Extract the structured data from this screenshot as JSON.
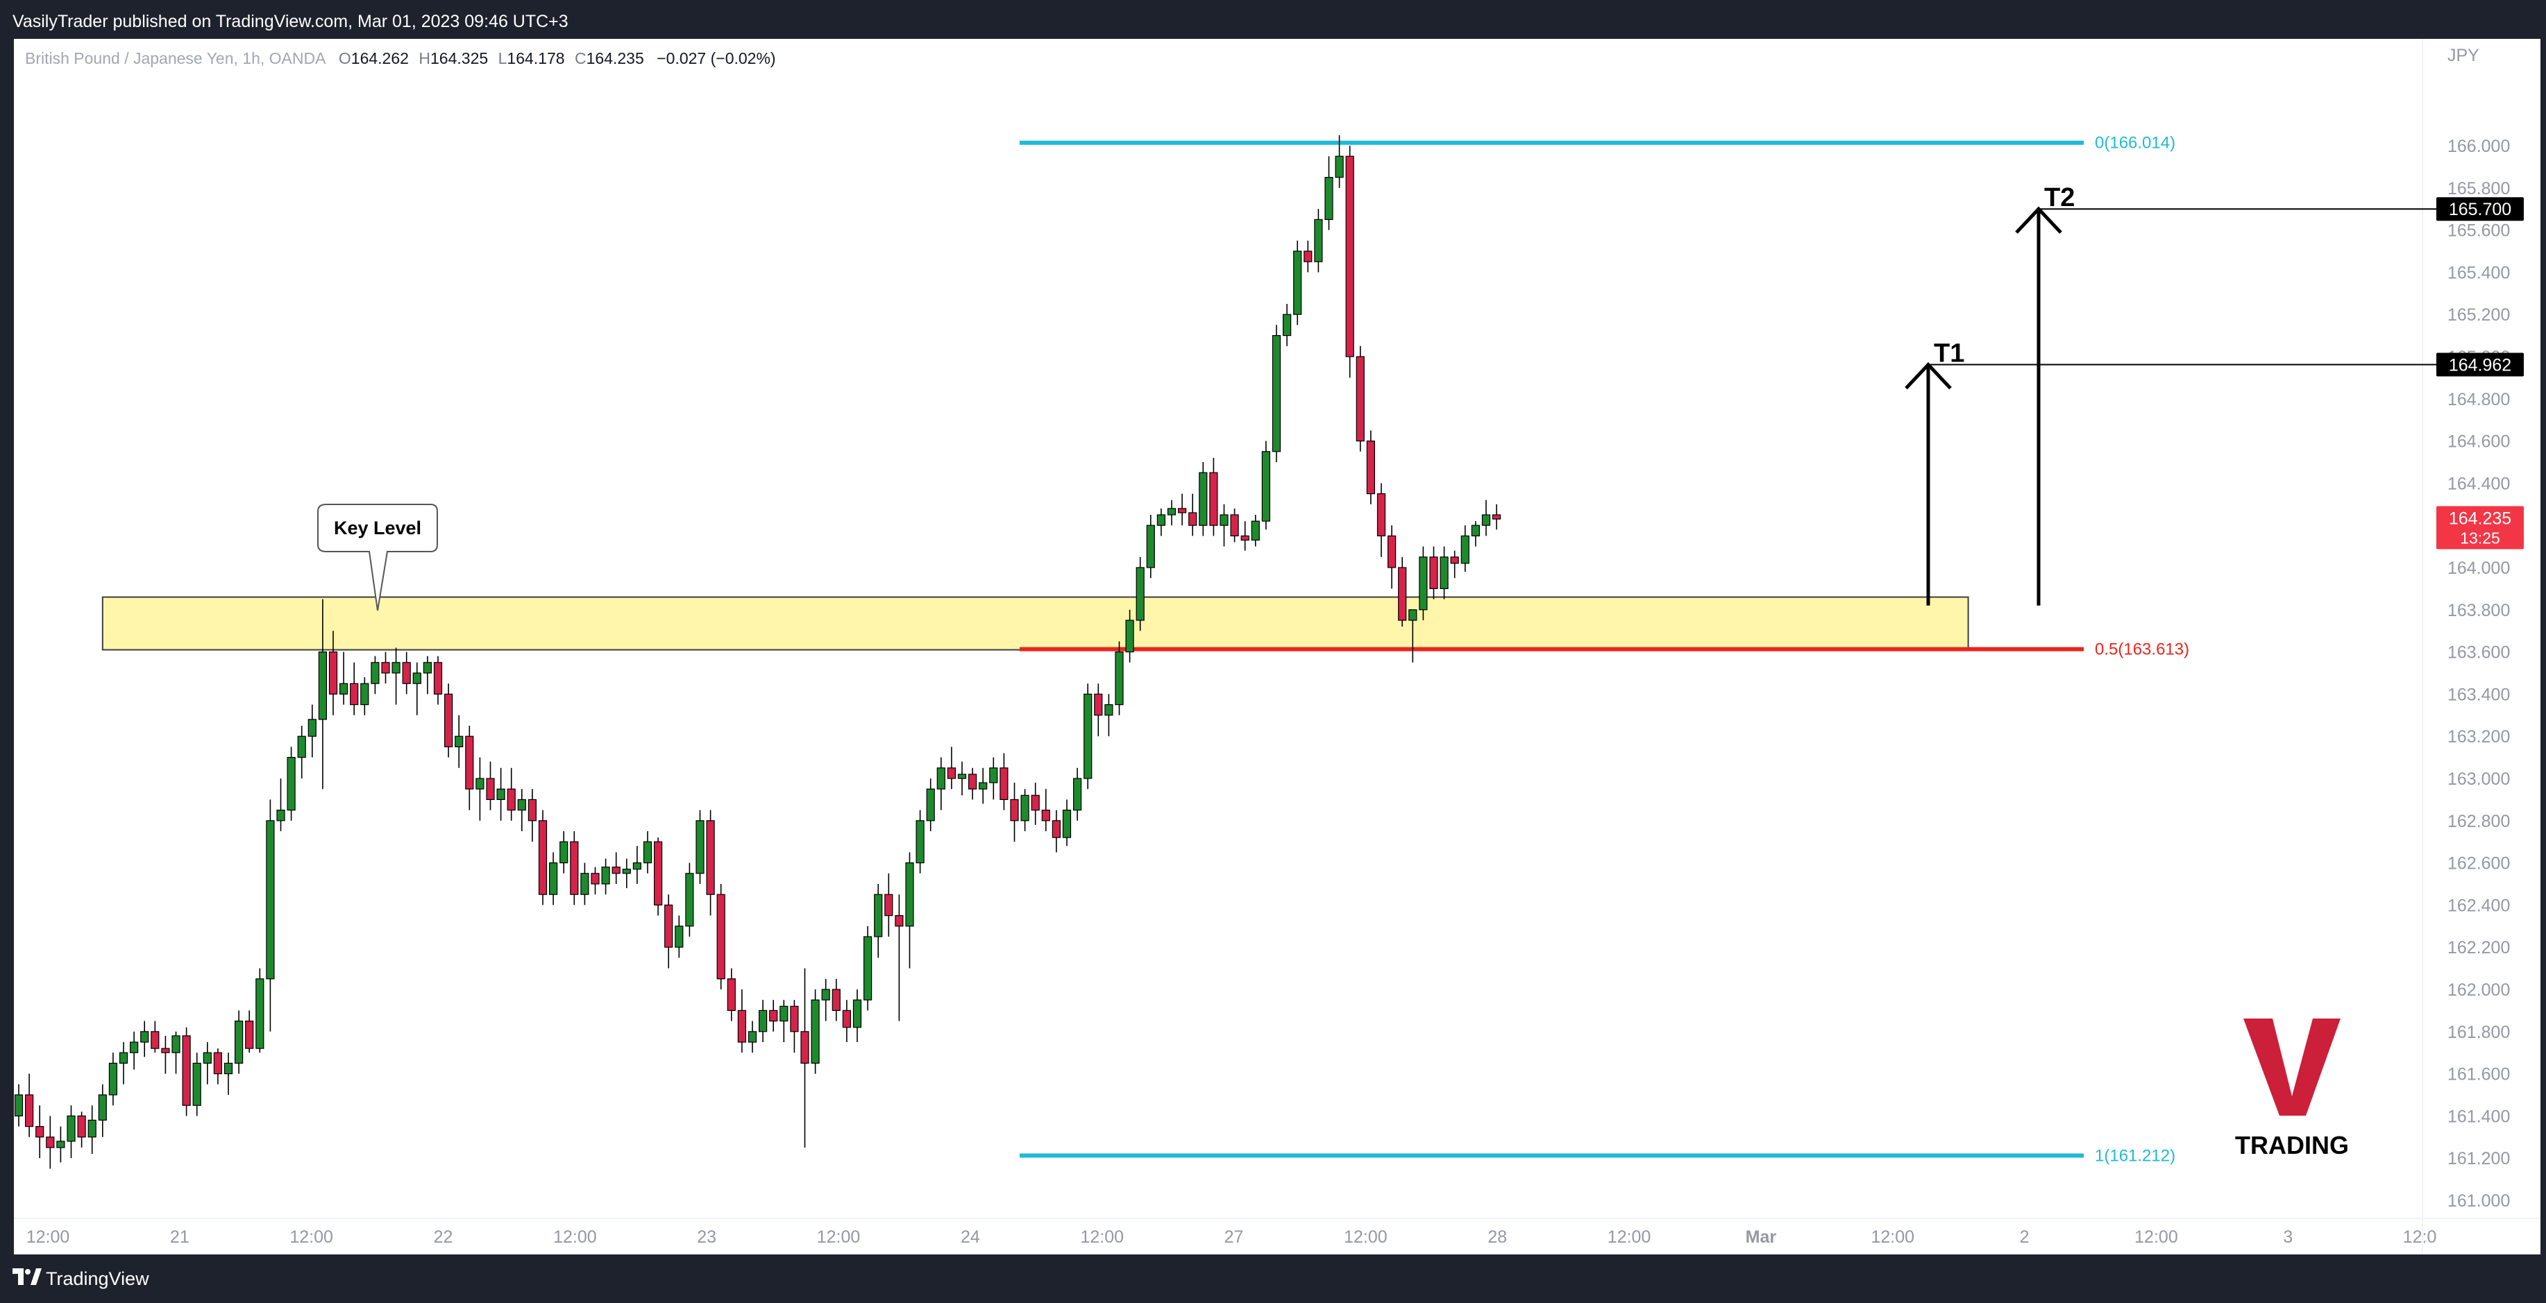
{
  "header": {
    "published": "VasilyTrader published on TradingView.com, Mar 01, 2023 09:46 UTC+3"
  },
  "footer": {
    "brand": "TradingView"
  },
  "legend": {
    "symbol": "British Pound / Japanese Yen, 1h, OANDA",
    "open_label": "O",
    "open": "164.262",
    "high_label": "H",
    "high": "164.325",
    "low_label": "L",
    "low": "164.178",
    "close_label": "C",
    "close": "164.235",
    "change": "−0.027 (−0.02%)"
  },
  "currency": "JPY",
  "watermark": {
    "letter": "V",
    "text": "TRADING",
    "color": "#cc1f3a"
  },
  "annotations": {
    "key_level": "Key Level",
    "t1": "T1",
    "t2": "T2"
  },
  "colors": {
    "up": "#1e8a2e",
    "down": "#d6234a",
    "fib_extreme": "#1ebad6",
    "fib_mid": "#e8261e",
    "zone_fill": "#fff59d",
    "zone_border": "#3d3d3d"
  },
  "chart_data": {
    "type": "candlestick",
    "ylim": [
      160.9,
      166.3
    ],
    "y_ticks": [
      161.0,
      161.2,
      161.4,
      161.6,
      161.8,
      162.0,
      162.2,
      162.4,
      162.6,
      162.8,
      163.0,
      163.2,
      163.4,
      163.6,
      163.8,
      164.0,
      164.2,
      164.4,
      164.6,
      164.8,
      165.0,
      165.2,
      165.4,
      165.6,
      165.8,
      166.0
    ],
    "y_tick_labels": [
      "161.000",
      "161.200",
      "161.400",
      "161.600",
      "161.800",
      "162.000",
      "162.200",
      "162.400",
      "162.600",
      "162.800",
      "163.000",
      "163.200",
      "163.400",
      "163.600",
      "163.800",
      "164.000",
      "164.200",
      "164.400",
      "164.600",
      "164.800",
      "165.000",
      "165.200",
      "165.400",
      "165.600",
      "165.800",
      "166.000"
    ],
    "x_ticks": [
      {
        "label": "12:00",
        "bar": 2
      },
      {
        "label": "21",
        "bar": 14
      },
      {
        "label": "12:00",
        "bar": 26
      },
      {
        "label": "22",
        "bar": 38
      },
      {
        "label": "12:00",
        "bar": 50
      },
      {
        "label": "23",
        "bar": 62
      },
      {
        "label": "12:00",
        "bar": 74
      },
      {
        "label": "24",
        "bar": 86
      },
      {
        "label": "12:00",
        "bar": 98
      },
      {
        "label": "27",
        "bar": 110
      },
      {
        "label": "12:00",
        "bar": 122
      },
      {
        "label": "28",
        "bar": 134
      },
      {
        "label": "12:00",
        "bar": 146
      },
      {
        "label": "Mar",
        "bar": 158
      },
      {
        "label": "12:00",
        "bar": 170
      },
      {
        "label": "2",
        "bar": 182
      },
      {
        "label": "12:00",
        "bar": 194
      },
      {
        "label": "3",
        "bar": 206
      },
      {
        "label": "12:0",
        "bar": 218
      }
    ],
    "price_labels": [
      {
        "value": 165.7,
        "text": "165.700",
        "style": "black"
      },
      {
        "value": 164.962,
        "text": "164.962",
        "style": "black"
      },
      {
        "value": 164.235,
        "text": "164.235",
        "style": "red",
        "sub": "13:25"
      }
    ],
    "fib_levels": [
      {
        "value": 166.014,
        "text": "0(166.014)",
        "color": "#1ebad6"
      },
      {
        "value": 163.613,
        "text": "0.5(163.613)",
        "color": "#e8261e"
      },
      {
        "value": 161.212,
        "text": "1(161.212)",
        "color": "#1ebad6"
      }
    ],
    "fib_bar_range": [
      89,
      185
    ],
    "zone": {
      "top": 163.86,
      "bottom": 163.61,
      "bar_start": 8,
      "bar_end": 186
    },
    "targets": [
      {
        "label": "T1",
        "value": 164.962,
        "bar": 173,
        "from": 163.82
      },
      {
        "label": "T2",
        "value": 165.7,
        "bar": 183,
        "from": 163.82
      }
    ],
    "candles": [
      [
        161.4,
        161.55,
        161.35,
        161.5
      ],
      [
        161.5,
        161.6,
        161.3,
        161.35
      ],
      [
        161.35,
        161.45,
        161.2,
        161.3
      ],
      [
        161.3,
        161.4,
        161.15,
        161.25
      ],
      [
        161.25,
        161.35,
        161.18,
        161.28
      ],
      [
        161.28,
        161.45,
        161.2,
        161.4
      ],
      [
        161.4,
        161.42,
        161.25,
        161.3
      ],
      [
        161.3,
        161.45,
        161.22,
        161.38
      ],
      [
        161.38,
        161.55,
        161.3,
        161.5
      ],
      [
        161.5,
        161.7,
        161.45,
        161.65
      ],
      [
        161.65,
        161.75,
        161.55,
        161.7
      ],
      [
        161.7,
        161.8,
        161.62,
        161.75
      ],
      [
        161.75,
        161.85,
        161.68,
        161.8
      ],
      [
        161.8,
        161.85,
        161.7,
        161.72
      ],
      [
        161.72,
        161.78,
        161.6,
        161.7
      ],
      [
        161.7,
        161.8,
        161.6,
        161.78
      ],
      [
        161.78,
        161.82,
        161.4,
        161.45
      ],
      [
        161.45,
        161.7,
        161.4,
        161.65
      ],
      [
        161.65,
        161.75,
        161.55,
        161.7
      ],
      [
        161.7,
        161.72,
        161.55,
        161.6
      ],
      [
        161.6,
        161.7,
        161.5,
        161.65
      ],
      [
        161.65,
        161.9,
        161.6,
        161.85
      ],
      [
        161.85,
        161.9,
        161.7,
        161.72
      ],
      [
        161.72,
        162.1,
        161.7,
        162.05
      ],
      [
        162.05,
        162.9,
        161.8,
        162.8
      ],
      [
        162.8,
        163.0,
        162.75,
        162.85
      ],
      [
        162.85,
        163.15,
        162.8,
        163.1
      ],
      [
        163.1,
        163.25,
        163.0,
        163.2
      ],
      [
        163.2,
        163.35,
        163.1,
        163.28
      ],
      [
        163.28,
        163.85,
        162.95,
        163.6
      ],
      [
        163.6,
        163.7,
        163.3,
        163.4
      ],
      [
        163.4,
        163.6,
        163.35,
        163.45
      ],
      [
        163.45,
        163.55,
        163.3,
        163.35
      ],
      [
        163.35,
        163.48,
        163.3,
        163.45
      ],
      [
        163.45,
        163.58,
        163.4,
        163.55
      ],
      [
        163.55,
        163.6,
        163.45,
        163.5
      ],
      [
        163.5,
        163.62,
        163.35,
        163.55
      ],
      [
        163.55,
        163.6,
        163.4,
        163.45
      ],
      [
        163.45,
        163.55,
        163.3,
        163.5
      ],
      [
        163.5,
        163.58,
        163.4,
        163.55
      ],
      [
        163.55,
        163.58,
        163.35,
        163.4
      ],
      [
        163.4,
        163.45,
        163.1,
        163.15
      ],
      [
        163.15,
        163.3,
        163.05,
        163.2
      ],
      [
        163.2,
        163.25,
        162.85,
        162.95
      ],
      [
        162.95,
        163.1,
        162.8,
        163.0
      ],
      [
        163.0,
        163.08,
        162.85,
        162.9
      ],
      [
        162.9,
        163.05,
        162.8,
        162.95
      ],
      [
        162.95,
        163.05,
        162.8,
        162.85
      ],
      [
        162.85,
        162.95,
        162.75,
        162.9
      ],
      [
        162.9,
        162.95,
        162.7,
        162.8
      ],
      [
        162.8,
        162.85,
        162.4,
        162.45
      ],
      [
        162.45,
        162.65,
        162.4,
        162.6
      ],
      [
        162.6,
        162.75,
        162.55,
        162.7
      ],
      [
        162.7,
        162.75,
        162.4,
        162.45
      ],
      [
        162.45,
        162.6,
        162.4,
        162.55
      ],
      [
        162.55,
        162.58,
        162.45,
        162.5
      ],
      [
        162.5,
        162.62,
        162.45,
        162.58
      ],
      [
        162.58,
        162.65,
        162.5,
        162.55
      ],
      [
        162.55,
        162.62,
        162.48,
        162.57
      ],
      [
        162.57,
        162.68,
        162.5,
        162.6
      ],
      [
        162.6,
        162.75,
        162.55,
        162.7
      ],
      [
        162.7,
        162.72,
        162.35,
        162.4
      ],
      [
        162.4,
        162.45,
        162.1,
        162.2
      ],
      [
        162.2,
        162.35,
        162.15,
        162.3
      ],
      [
        162.3,
        162.6,
        162.25,
        162.55
      ],
      [
        162.55,
        162.85,
        162.5,
        162.8
      ],
      [
        162.8,
        162.85,
        162.35,
        162.45
      ],
      [
        162.45,
        162.5,
        162.0,
        162.05
      ],
      [
        162.05,
        162.1,
        161.85,
        161.9
      ],
      [
        161.9,
        162.0,
        161.7,
        161.75
      ],
      [
        161.75,
        161.85,
        161.7,
        161.8
      ],
      [
        161.8,
        161.95,
        161.75,
        161.9
      ],
      [
        161.9,
        161.95,
        161.8,
        161.85
      ],
      [
        161.85,
        161.95,
        161.75,
        161.92
      ],
      [
        161.92,
        161.95,
        161.7,
        161.8
      ],
      [
        161.8,
        162.1,
        161.25,
        161.65
      ],
      [
        161.65,
        162.0,
        161.6,
        161.95
      ],
      [
        161.95,
        162.05,
        161.85,
        162.0
      ],
      [
        162.0,
        162.05,
        161.85,
        161.9
      ],
      [
        161.9,
        161.95,
        161.75,
        161.82
      ],
      [
        161.82,
        162.0,
        161.75,
        161.95
      ],
      [
        161.95,
        162.3,
        161.9,
        162.25
      ],
      [
        162.25,
        162.5,
        162.15,
        162.45
      ],
      [
        162.45,
        162.55,
        162.25,
        162.35
      ],
      [
        162.35,
        162.45,
        161.85,
        162.3
      ],
      [
        162.3,
        162.65,
        162.1,
        162.6
      ],
      [
        162.6,
        162.85,
        162.55,
        162.8
      ],
      [
        162.8,
        163.0,
        162.75,
        162.95
      ],
      [
        162.95,
        163.1,
        162.85,
        163.05
      ],
      [
        163.05,
        163.15,
        162.95,
        163.0
      ],
      [
        163.0,
        163.08,
        162.92,
        163.02
      ],
      [
        163.02,
        163.05,
        162.9,
        162.95
      ],
      [
        162.95,
        163.05,
        162.88,
        162.98
      ],
      [
        162.98,
        163.1,
        162.9,
        163.05
      ],
      [
        163.05,
        163.12,
        162.85,
        162.9
      ],
      [
        162.9,
        162.98,
        162.7,
        162.8
      ],
      [
        162.8,
        162.95,
        162.75,
        162.92
      ],
      [
        162.92,
        162.98,
        162.78,
        162.85
      ],
      [
        162.85,
        162.95,
        162.75,
        162.8
      ],
      [
        162.8,
        162.85,
        162.65,
        162.72
      ],
      [
        162.72,
        162.9,
        162.68,
        162.85
      ],
      [
        162.85,
        163.05,
        162.8,
        163.0
      ],
      [
        163.0,
        163.45,
        162.95,
        163.4
      ],
      [
        163.4,
        163.45,
        163.2,
        163.3
      ],
      [
        163.3,
        163.4,
        163.2,
        163.35
      ],
      [
        163.35,
        163.65,
        163.3,
        163.6
      ],
      [
        163.6,
        163.8,
        163.55,
        163.75
      ],
      [
        163.75,
        164.05,
        163.7,
        164.0
      ],
      [
        164.0,
        164.25,
        163.95,
        164.2
      ],
      [
        164.2,
        164.28,
        164.15,
        164.25
      ],
      [
        164.25,
        164.32,
        164.2,
        164.28
      ],
      [
        164.28,
        164.35,
        164.2,
        164.26
      ],
      [
        164.26,
        164.35,
        164.15,
        164.2
      ],
      [
        164.2,
        164.5,
        164.15,
        164.45
      ],
      [
        164.45,
        164.52,
        164.15,
        164.2
      ],
      [
        164.2,
        164.3,
        164.1,
        164.25
      ],
      [
        164.25,
        164.28,
        164.12,
        164.15
      ],
      [
        164.15,
        164.22,
        164.08,
        164.13
      ],
      [
        164.13,
        164.25,
        164.1,
        164.22
      ],
      [
        164.22,
        164.6,
        164.18,
        164.55
      ],
      [
        164.55,
        165.15,
        164.5,
        165.1
      ],
      [
        165.1,
        165.25,
        165.05,
        165.2
      ],
      [
        165.2,
        165.55,
        165.15,
        165.5
      ],
      [
        165.5,
        165.55,
        165.4,
        165.45
      ],
      [
        165.45,
        165.7,
        165.4,
        165.65
      ],
      [
        165.65,
        165.95,
        165.6,
        165.85
      ],
      [
        165.85,
        166.05,
        165.8,
        165.95
      ],
      [
        165.95,
        166.0,
        164.9,
        165.0
      ],
      [
        165.0,
        165.05,
        164.55,
        164.6
      ],
      [
        164.6,
        164.65,
        164.3,
        164.35
      ],
      [
        164.35,
        164.4,
        164.05,
        164.15
      ],
      [
        164.15,
        164.2,
        163.9,
        164.0
      ],
      [
        164.0,
        164.05,
        163.72,
        163.75
      ],
      [
        163.75,
        163.8,
        163.55,
        163.8
      ],
      [
        163.8,
        164.1,
        163.75,
        164.05
      ],
      [
        164.05,
        164.1,
        163.85,
        163.9
      ],
      [
        163.9,
        164.1,
        163.85,
        164.05
      ],
      [
        164.05,
        164.08,
        163.95,
        164.02
      ],
      [
        164.02,
        164.2,
        163.98,
        164.15
      ],
      [
        164.15,
        164.22,
        164.1,
        164.2
      ],
      [
        164.2,
        164.32,
        164.15,
        164.25
      ],
      [
        164.25,
        164.3,
        164.18,
        164.23
      ]
    ]
  }
}
